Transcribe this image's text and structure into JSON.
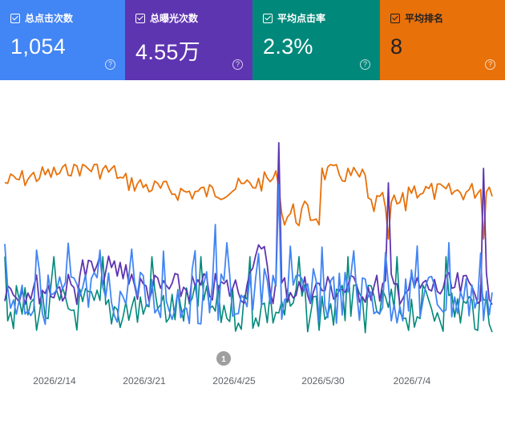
{
  "metrics": [
    {
      "label": "总点击次数",
      "value": "1,054",
      "color": "#4285f4"
    },
    {
      "label": "总曝光次数",
      "value": "4.55万",
      "color": "#5e35b1"
    },
    {
      "label": "平均点击率",
      "value": "2.3%",
      "color": "#00897b"
    },
    {
      "label": "平均排名",
      "value": "8",
      "color": "#e8710a"
    }
  ],
  "help_icon": "help-circle-icon",
  "chart": {
    "x_labels": [
      "2026/2/14",
      "2026/3/21",
      "2026/4/25",
      "2026/5/30",
      "2026/7/4"
    ],
    "annotation": "1"
  }
}
